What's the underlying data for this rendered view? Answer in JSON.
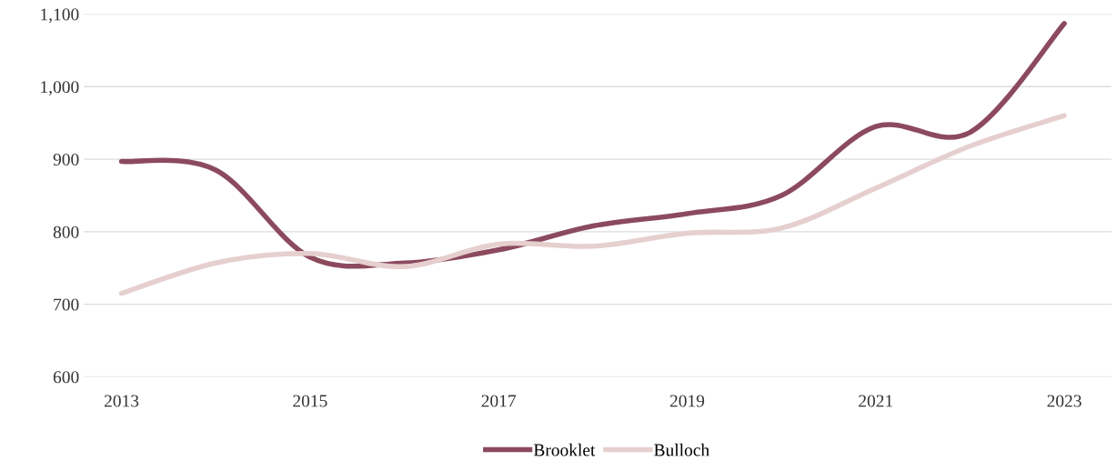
{
  "chart_data": {
    "type": "line",
    "x": [
      2013,
      2014,
      2015,
      2016,
      2017,
      2018,
      2019,
      2020,
      2021,
      2022,
      2023
    ],
    "series": [
      {
        "name": "Brooklet",
        "color": "#8c4a5e",
        "values": [
          897,
          885,
          765,
          757,
          775,
          808,
          825,
          850,
          945,
          937,
          1087
        ]
      },
      {
        "name": "Bulloch",
        "color": "#e6cfcf",
        "values": [
          715,
          757,
          770,
          752,
          783,
          780,
          798,
          805,
          860,
          918,
          960
        ]
      }
    ],
    "xlim": [
      2012.6,
      2023.5
    ],
    "xticks": [
      2013,
      2015,
      2017,
      2019,
      2021,
      2023
    ],
    "ylim": [
      600,
      1100
    ],
    "yticks": [
      {
        "value": 600,
        "label": "600"
      },
      {
        "value": 700,
        "label": "700"
      },
      {
        "value": 800,
        "label": "800"
      },
      {
        "value": 900,
        "label": "900"
      },
      {
        "value": 1000,
        "label": "1,000"
      },
      {
        "value": 1100,
        "label": "1,100"
      }
    ],
    "grid": "y",
    "legend": "bottom",
    "marker": "none",
    "line_style": "solid"
  }
}
